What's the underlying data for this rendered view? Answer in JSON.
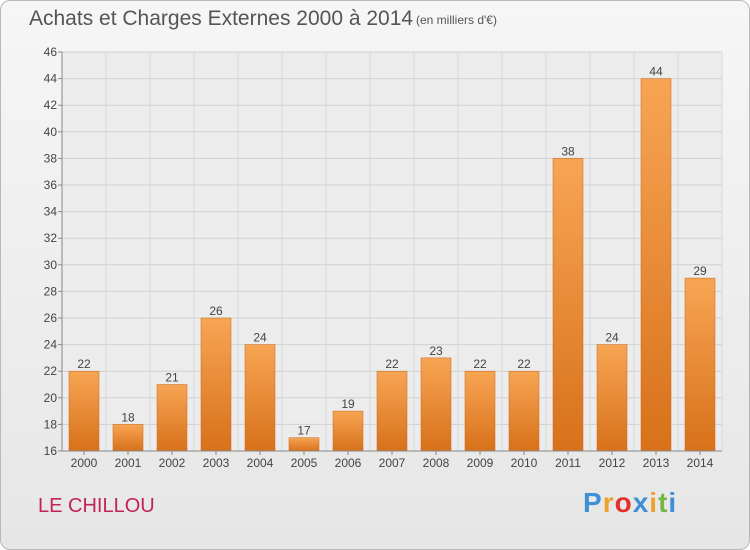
{
  "chart_data": {
    "type": "bar",
    "title": "Achats et Charges Externes 2000 à 2014",
    "subtitle": "(en milliers d'€)",
    "categories": [
      "2000",
      "2001",
      "2002",
      "2003",
      "2004",
      "2005",
      "2006",
      "2007",
      "2008",
      "2009",
      "2010",
      "2011",
      "2012",
      "2013",
      "2014"
    ],
    "values": [
      22,
      18,
      21,
      26,
      24,
      17,
      19,
      22,
      23,
      22,
      22,
      38,
      24,
      44,
      29
    ],
    "data_labels": [
      "22",
      "18",
      "21",
      "26",
      "24",
      "17",
      "19",
      "22",
      "23",
      "22",
      "22",
      "38",
      "24",
      "44",
      "29"
    ],
    "ylim": [
      16,
      46
    ],
    "yticks": [
      "16",
      "18",
      "20",
      "22",
      "24",
      "26",
      "28",
      "30",
      "32",
      "34",
      "36",
      "38",
      "40",
      "42",
      "44",
      "46"
    ],
    "grid": true,
    "bar_color": "#f08c2a"
  },
  "footer": {
    "location": "LE CHILLOU",
    "logo_letters": [
      "P",
      "r",
      "o",
      "x",
      "i",
      "t",
      "i"
    ],
    "logo_colors": [
      "#3d8fd6",
      "#f0a030",
      "#e4312b",
      "#3d8fd6",
      "#f0a030",
      "#74b843",
      "#3d8fd6"
    ]
  }
}
